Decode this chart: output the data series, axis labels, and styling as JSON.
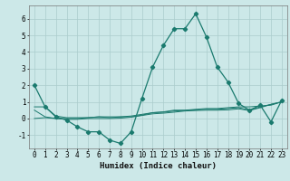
{
  "xlabel": "Humidex (Indice chaleur)",
  "x_values": [
    0,
    1,
    2,
    3,
    4,
    5,
    6,
    7,
    8,
    9,
    10,
    11,
    12,
    13,
    14,
    15,
    16,
    17,
    18,
    19,
    20,
    21,
    22,
    23
  ],
  "line1": [
    2.0,
    0.7,
    0.1,
    -0.1,
    -0.5,
    -0.8,
    -0.8,
    -1.3,
    -1.5,
    -0.8,
    1.2,
    3.1,
    4.4,
    5.4,
    5.4,
    6.3,
    4.9,
    3.1,
    2.2,
    0.9,
    0.5,
    0.8,
    -0.2,
    1.1
  ],
  "line2": [
    0.7,
    0.7,
    0.15,
    0.05,
    0.05,
    0.05,
    0.1,
    0.1,
    0.1,
    0.15,
    0.25,
    0.35,
    0.4,
    0.5,
    0.5,
    0.55,
    0.6,
    0.6,
    0.65,
    0.7,
    0.7,
    0.75,
    0.8,
    1.0
  ],
  "line3": [
    0.5,
    0.1,
    0.0,
    0.0,
    0.0,
    0.05,
    0.1,
    0.05,
    0.1,
    0.1,
    0.2,
    0.35,
    0.38,
    0.45,
    0.48,
    0.52,
    0.55,
    0.55,
    0.6,
    0.65,
    0.5,
    0.7,
    0.85,
    1.0
  ],
  "line4": [
    0.0,
    0.05,
    0.0,
    -0.05,
    -0.05,
    0.0,
    0.0,
    0.0,
    0.02,
    0.08,
    0.18,
    0.28,
    0.32,
    0.38,
    0.45,
    0.48,
    0.5,
    0.5,
    0.52,
    0.58,
    0.48,
    0.65,
    0.85,
    1.0
  ],
  "line_color": "#1a7a6e",
  "bg_color": "#cce8e8",
  "grid_color": "#aacccc",
  "ylim": [
    -1.8,
    6.8
  ],
  "yticks": [
    -1,
    0,
    1,
    2,
    3,
    4,
    5,
    6
  ],
  "marker": "D",
  "marker_size": 2.2,
  "tick_fontsize": 5.5,
  "xlabel_fontsize": 6.5
}
